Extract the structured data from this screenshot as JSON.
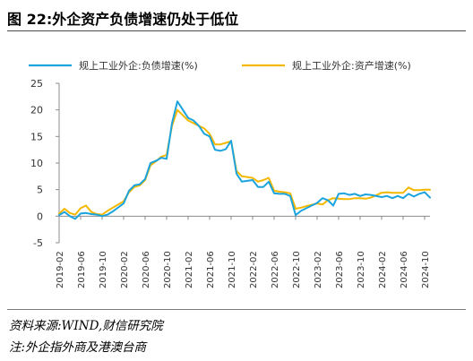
{
  "figure": {
    "title": "图 22:外企资产负债增速仍处于低位",
    "source_note": "资料来源:WIND,财信研究院",
    "footnote": "注:外企指外商及港澳台商"
  },
  "chart_data": {
    "type": "line",
    "title": "",
    "xlabel": "",
    "ylabel": "",
    "ylim": [
      -5,
      25
    ],
    "y_ticks": [
      -5,
      0,
      5,
      10,
      15,
      20,
      25
    ],
    "grid": false,
    "legend_position": "top",
    "x_tick_labels": [
      "2019-02",
      "2019-06",
      "2019-10",
      "2020-02",
      "2020-06",
      "2020-10",
      "2021-02",
      "2021-06",
      "2021-10",
      "2022-02",
      "2022-06",
      "2022-10",
      "2023-02",
      "2023-06",
      "2023-10",
      "2024-02",
      "2024-06",
      "2024-10"
    ],
    "x": [
      "2019-02",
      "2019-03",
      "2019-04",
      "2019-05",
      "2019-06",
      "2019-07",
      "2019-08",
      "2019-09",
      "2019-10",
      "2019-11",
      "2019-12",
      "2020-02",
      "2020-03",
      "2020-04",
      "2020-05",
      "2020-06",
      "2020-07",
      "2020-08",
      "2020-09",
      "2020-10",
      "2020-11",
      "2020-12",
      "2021-02",
      "2021-03",
      "2021-04",
      "2021-05",
      "2021-06",
      "2021-07",
      "2021-08",
      "2021-09",
      "2021-10",
      "2021-11",
      "2021-12",
      "2022-02",
      "2022-03",
      "2022-04",
      "2022-05",
      "2022-06",
      "2022-07",
      "2022-08",
      "2022-09",
      "2022-10",
      "2022-11",
      "2022-12",
      "2023-02",
      "2023-03",
      "2023-04",
      "2023-05",
      "2023-06",
      "2023-07",
      "2023-08",
      "2023-09",
      "2023-10",
      "2023-11",
      "2023-12",
      "2024-02",
      "2024-03",
      "2024-04",
      "2024-05",
      "2024-06",
      "2024-07",
      "2024-08",
      "2024-09",
      "2024-10",
      "2024-11"
    ],
    "series": [
      {
        "name": "规上工业外企:负债增速(%)",
        "color": "#1AA3DC",
        "values": [
          0.2,
          0.8,
          0.0,
          -0.5,
          0.5,
          0.6,
          0.4,
          0.3,
          0.0,
          0.3,
          0.9,
          2.4,
          4.8,
          5.8,
          6.0,
          7.0,
          10.0,
          10.4,
          11.0,
          10.8,
          17.5,
          21.6,
          18.5,
          18.0,
          17.0,
          15.5,
          15.0,
          12.5,
          12.3,
          12.6,
          14.2,
          8.0,
          6.5,
          6.8,
          5.5,
          5.5,
          6.5,
          4.3,
          4.2,
          4.2,
          3.8,
          0.2,
          1.0,
          1.5,
          2.5,
          3.4,
          3.0,
          2.0,
          4.2,
          4.3,
          4.0,
          4.2,
          3.8,
          4.1,
          4.0,
          3.6,
          3.8,
          3.4,
          3.8,
          3.4,
          4.2,
          3.7,
          4.2,
          4.5,
          3.5
        ]
      },
      {
        "name": "规上工业外企:资产增速(%)",
        "color": "#F5B800",
        "values": [
          0.5,
          1.4,
          0.6,
          0.3,
          1.5,
          2.0,
          0.8,
          0.4,
          0.3,
          1.0,
          1.6,
          2.8,
          4.5,
          5.5,
          5.8,
          6.8,
          9.6,
          10.3,
          11.2,
          11.5,
          17.0,
          20.0,
          18.0,
          17.5,
          17.0,
          16.5,
          15.5,
          13.5,
          13.5,
          13.8,
          14.1,
          8.5,
          7.5,
          7.2,
          6.5,
          6.8,
          7.2,
          4.8,
          4.6,
          4.5,
          4.3,
          1.4,
          1.6,
          1.9,
          2.4,
          2.2,
          3.0,
          3.4,
          3.3,
          3.2,
          3.2,
          3.4,
          3.4,
          3.3,
          3.5,
          4.4,
          4.5,
          4.4,
          4.4,
          4.4,
          5.4,
          4.9,
          4.9,
          5.0,
          5.0
        ]
      }
    ]
  }
}
